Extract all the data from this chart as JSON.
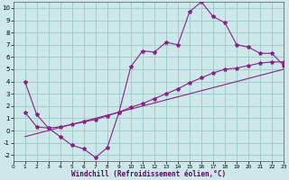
{
  "xlabel": "Windchill (Refroidissement éolien,°C)",
  "background_color": "#cce8e8",
  "grid_color": "#9dcaca",
  "line_color": "#882288",
  "xlim": [
    0,
    23
  ],
  "ylim": [
    -2.5,
    10.5
  ],
  "xticks": [
    0,
    1,
    2,
    3,
    4,
    5,
    6,
    7,
    8,
    9,
    10,
    11,
    12,
    13,
    14,
    15,
    16,
    17,
    18,
    19,
    20,
    21,
    22,
    23
  ],
  "yticks": [
    -2,
    -1,
    0,
    1,
    2,
    3,
    4,
    5,
    6,
    7,
    8,
    9,
    10
  ],
  "line1_x": [
    1,
    2,
    3,
    4,
    5,
    6,
    7,
    8,
    9,
    10,
    11,
    12,
    13,
    14,
    15,
    16,
    17,
    18,
    19,
    20,
    21,
    22,
    23
  ],
  "line1_y": [
    4.0,
    1.3,
    0.2,
    -0.5,
    -1.2,
    -1.5,
    -2.2,
    -1.4,
    1.5,
    5.2,
    6.5,
    6.4,
    7.2,
    7.0,
    9.7,
    10.5,
    9.3,
    8.8,
    7.0,
    6.8,
    6.3,
    6.3,
    5.3
  ],
  "line2_x": [
    1,
    2,
    3,
    4,
    5,
    6,
    7,
    8,
    9,
    10,
    11,
    12,
    13,
    14,
    15,
    16,
    17,
    18,
    19,
    20,
    21,
    22,
    23
  ],
  "line2_y": [
    1.5,
    0.3,
    0.2,
    0.3,
    0.5,
    0.7,
    0.9,
    1.2,
    1.5,
    1.9,
    2.2,
    2.6,
    3.0,
    3.4,
    3.9,
    4.3,
    4.7,
    5.0,
    5.1,
    5.3,
    5.5,
    5.6,
    5.6
  ],
  "line3_x": [
    1,
    23
  ],
  "line3_y": [
    -0.5,
    5.0
  ],
  "xlabel_color": "#660066",
  "xlabel_fontsize": 5.5,
  "tick_fontsize_x": 4.2,
  "tick_fontsize_y": 5.0,
  "marker": "*",
  "markersize": 3.0,
  "linewidth": 0.8
}
